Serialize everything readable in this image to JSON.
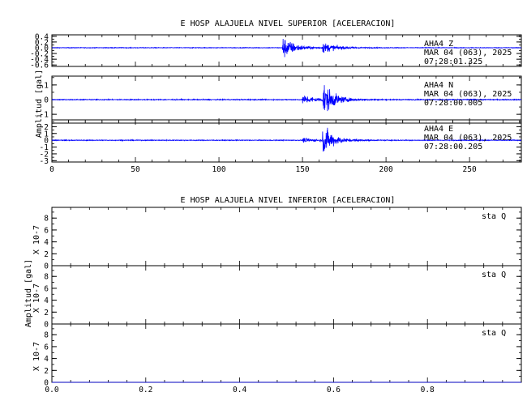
{
  "colors": {
    "trace": "#0000ff",
    "frame": "#000000",
    "background": "#ffffff"
  },
  "chart_data": [
    {
      "type": "line",
      "title": "E HOSP ALAJUELA NIVEL SUPERIOR [ACELERACION]",
      "ylabel": "Amplitud [gal]",
      "xlim": [
        0,
        281
      ],
      "xticks": [
        0,
        50,
        100,
        150,
        200,
        250
      ],
      "xticklabels": [
        "0",
        "50",
        "100",
        "150",
        "200",
        "250"
      ],
      "panels": [
        {
          "ylim": [
            -0.65,
            0.45
          ],
          "yticks": [
            0.4,
            0.2,
            0.0,
            -0.2,
            -0.4,
            -0.6
          ],
          "yticklabels": [
            "0.4",
            "0.2",
            "0.0",
            "-0.2",
            "-0.4",
            "-0.6"
          ],
          "annotation": [
            "AHA4 Z",
            "MAR 04 (063), 2025",
            "07:28:01.325"
          ],
          "events": [
            {
              "t": 138,
              "amp": 0.5,
              "decay": 7
            },
            {
              "t": 162,
              "amp": 0.22,
              "decay": 8
            }
          ]
        },
        {
          "ylim": [
            -1.6,
            1.6
          ],
          "yticks": [
            1,
            0,
            -1
          ],
          "yticklabels": [
            "1",
            "0",
            "-1"
          ],
          "annotation": [
            "AHA4 N",
            "MAR 04 (063), 2025",
            "07:28:00.005"
          ],
          "events": [
            {
              "t": 150,
              "amp": 0.4,
              "decay": 8
            },
            {
              "t": 162,
              "amp": 1.5,
              "decay": 6
            }
          ]
        },
        {
          "ylim": [
            -3.2,
            3.0
          ],
          "yticks": [
            2,
            1,
            0,
            -1,
            -2,
            -3
          ],
          "yticklabels": [
            "2",
            "1",
            "0",
            "-1",
            "-2",
            "-3"
          ],
          "annotation": [
            "AHA4 E",
            "MAR 04 (063), 2025",
            "07:28:00.205"
          ],
          "events": [
            {
              "t": 150,
              "amp": 0.4,
              "decay": 8
            },
            {
              "t": 162,
              "amp": 2.9,
              "decay": 6
            }
          ]
        }
      ]
    },
    {
      "type": "line",
      "title": "E HOSP ALAJUELA NIVEL INFERIOR [ACELERACION]",
      "ylabel": "Amplitud [gal]",
      "xlim": [
        0,
        1
      ],
      "xticks": [
        0,
        0.2,
        0.4,
        0.6,
        0.8
      ],
      "xticklabels": [
        "0.0",
        "0.2",
        "0.4",
        "0.6",
        "0.8"
      ],
      "panels": [
        {
          "ylim": [
            0,
            9.8
          ],
          "yticks": [
            8,
            6,
            4,
            2,
            0
          ],
          "yticklabels": [
            "8",
            "6",
            "4",
            "2",
            "0"
          ],
          "scale": "X 10-7",
          "annotation": [
            "sta Q"
          ],
          "values": [
            0,
            0
          ]
        },
        {
          "ylim": [
            0,
            9.8
          ],
          "yticks": [
            8,
            6,
            4,
            2,
            0
          ],
          "yticklabels": [
            "8",
            "6",
            "4",
            "2",
            "0"
          ],
          "scale": "X 10-7",
          "annotation": [
            "sta Q"
          ],
          "values": [
            0,
            0
          ]
        },
        {
          "ylim": [
            0,
            9.8
          ],
          "yticks": [
            8,
            6,
            4,
            2,
            0
          ],
          "yticklabels": [
            "8",
            "6",
            "4",
            "2",
            "0"
          ],
          "scale": "X 10-7",
          "annotation": [
            "sta Q"
          ],
          "values": [
            0,
            0
          ]
        }
      ]
    }
  ]
}
